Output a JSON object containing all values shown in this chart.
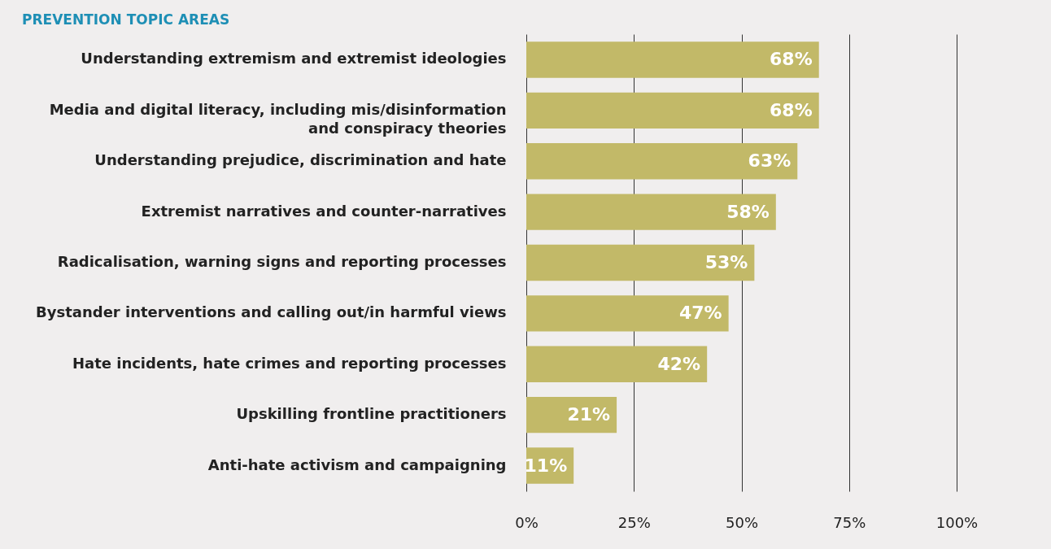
{
  "chart_data": {
    "type": "bar",
    "orientation": "horizontal",
    "title": "PREVENTION TOPIC AREAS",
    "categories": [
      "Understanding extremism and extremist ideologies",
      "Media and digital literacy, including mis/disinformation and conspiracy theories",
      "Understanding prejudice, discrimination and hate",
      "Extremist narratives and counter-narratives",
      "Radicalisation, warning signs and reporting processes",
      "Bystander interventions and calling out/in harmful views",
      "Hate incidents, hate crimes and reporting processes",
      "Upskilling frontline practitioners",
      "Anti-hate activism and campaigning"
    ],
    "values": [
      68,
      68,
      63,
      58,
      53,
      47,
      42,
      21,
      11
    ],
    "value_labels": [
      "68%",
      "68%",
      "63%",
      "58%",
      "53%",
      "47%",
      "42%",
      "21%",
      "11%"
    ],
    "color": "#c2b968",
    "xlim": [
      0,
      100
    ],
    "xticks": [
      {
        "value": 0,
        "label": "0%"
      },
      {
        "value": 25,
        "label": "25%"
      },
      {
        "value": 50,
        "label": "50%"
      },
      {
        "value": 75,
        "label": "75%"
      },
      {
        "value": 100,
        "label": "100%"
      }
    ],
    "grid": "x"
  }
}
